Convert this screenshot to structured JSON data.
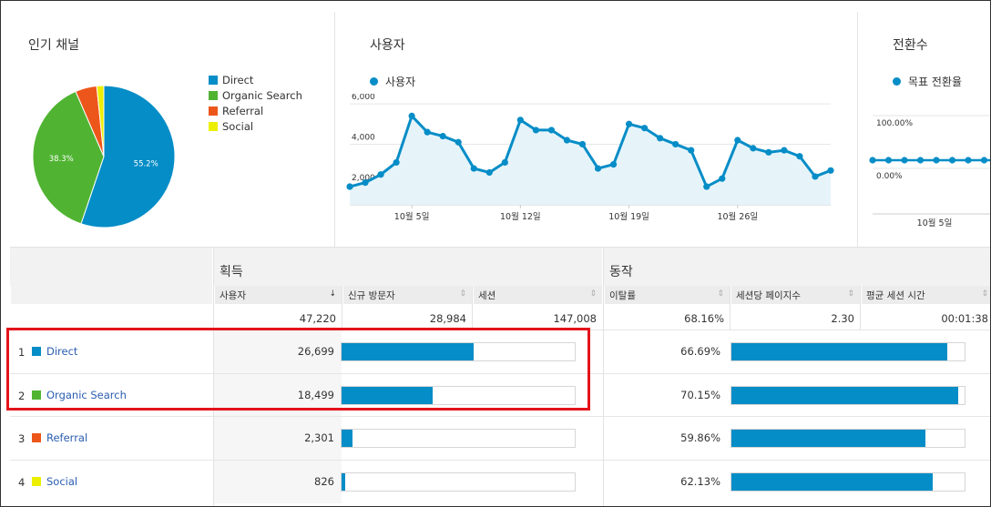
{
  "colors": {
    "direct": "#058dc7",
    "organic": "#50b432",
    "referral": "#ed561b",
    "social": "#edef00",
    "highlight": "#e3131b"
  },
  "channels_card": {
    "title": "인기 채널",
    "legend": [
      "Direct",
      "Organic Search",
      "Referral",
      "Social"
    ],
    "slice_labels": [
      "55.2%",
      "38.3%"
    ]
  },
  "users_card": {
    "title": "사용자",
    "series_name": "사용자",
    "y_ticks": [
      "6,000",
      "4,000",
      "2,000"
    ],
    "x_ticks": [
      "10월 5일",
      "10월 12일",
      "10월 19일",
      "10월 26일"
    ]
  },
  "conversions_card": {
    "title": "전환수",
    "series_name": "목표 전환율",
    "y_ticks": [
      "100.00%",
      "0.00%"
    ],
    "x_ticks": [
      "10월 5일"
    ]
  },
  "table": {
    "groups": [
      "획득",
      "동작"
    ],
    "columns": [
      "사용자",
      "신규 방문자",
      "세션",
      "이탈률",
      "세션당 페이지수",
      "평균 세션 시간"
    ],
    "sort_icons": [
      "↓",
      "⇕",
      "⇕",
      "⇕",
      "⇕",
      "⇕"
    ],
    "totals": [
      "47,220",
      "28,984",
      "147,008",
      "68.16%",
      "2.30",
      "00:01:38"
    ],
    "rows": [
      {
        "num": "1",
        "label": "Direct",
        "users": "26,699",
        "bounce": "66.69%"
      },
      {
        "num": "2",
        "label": "Organic Search",
        "users": "18,499",
        "bounce": "70.15%"
      },
      {
        "num": "3",
        "label": "Referral",
        "users": "2,301",
        "bounce": "59.86%"
      },
      {
        "num": "4",
        "label": "Social",
        "users": "826",
        "bounce": "62.13%"
      }
    ]
  },
  "chart_data": [
    {
      "type": "pie",
      "title": "인기 채널",
      "categories": [
        "Direct",
        "Organic Search",
        "Referral",
        "Social"
      ],
      "values": [
        55.2,
        38.3,
        4.9,
        1.6
      ]
    },
    {
      "type": "area",
      "title": "사용자",
      "series": [
        {
          "name": "사용자",
          "values": [
            1900,
            2100,
            2500,
            3100,
            5400,
            4600,
            4400,
            4100,
            2800,
            2600,
            3100,
            5200,
            4700,
            4700,
            4200,
            4000,
            2800,
            3000,
            5000,
            4800,
            4300,
            4000,
            3700,
            1900,
            2300,
            4200,
            3800,
            3600,
            3700,
            3400,
            2400,
            2700
          ]
        }
      ],
      "ylim": [
        1000,
        6500
      ],
      "x_ticks": [
        "10월 5일",
        "10월 12일",
        "10월 19일",
        "10월 26일"
      ]
    },
    {
      "type": "line",
      "title": "전환수",
      "series": [
        {
          "name": "목표 전환율",
          "values": [
            0,
            0,
            0,
            0,
            0,
            0,
            0,
            0,
            0,
            0
          ]
        }
      ],
      "ylim": [
        0,
        100
      ]
    },
    {
      "type": "bar",
      "title": "사용자",
      "categories": [
        "Direct",
        "Organic Search",
        "Referral",
        "Social"
      ],
      "values": [
        26699,
        18499,
        2301,
        826
      ]
    },
    {
      "type": "bar",
      "title": "이탈률",
      "categories": [
        "Direct",
        "Organic Search",
        "Referral",
        "Social"
      ],
      "values": [
        66.69,
        70.15,
        59.86,
        62.13
      ]
    }
  ]
}
